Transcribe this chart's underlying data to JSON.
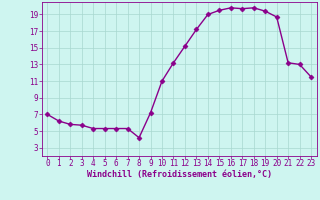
{
  "x": [
    0,
    1,
    2,
    3,
    4,
    5,
    6,
    7,
    8,
    9,
    10,
    11,
    12,
    13,
    14,
    15,
    16,
    17,
    18,
    19,
    20,
    21,
    22,
    23
  ],
  "y": [
    7.0,
    6.2,
    5.8,
    5.7,
    5.3,
    5.3,
    5.3,
    5.3,
    4.2,
    7.2,
    11.0,
    13.2,
    15.2,
    17.2,
    19.0,
    19.5,
    19.8,
    19.7,
    19.8,
    19.4,
    18.7,
    13.2,
    13.0,
    11.5
  ],
  "line_color": "#8B008B",
  "marker": "D",
  "markersize": 2.5,
  "linewidth": 1.0,
  "background_color": "#cef5f0",
  "grid_color": "#a8d8d0",
  "xlabel": "Windchill (Refroidissement éolien,°C)",
  "xlim": [
    -0.5,
    23.5
  ],
  "ylim": [
    2,
    20.5
  ],
  "yticks": [
    3,
    5,
    7,
    9,
    11,
    13,
    15,
    17,
    19
  ],
  "xticks": [
    0,
    1,
    2,
    3,
    4,
    5,
    6,
    7,
    8,
    9,
    10,
    11,
    12,
    13,
    14,
    15,
    16,
    17,
    18,
    19,
    20,
    21,
    22,
    23
  ],
  "tick_color": "#8B008B",
  "label_color": "#8B008B",
  "tick_fontsize": 5.5,
  "xlabel_fontsize": 6.0
}
